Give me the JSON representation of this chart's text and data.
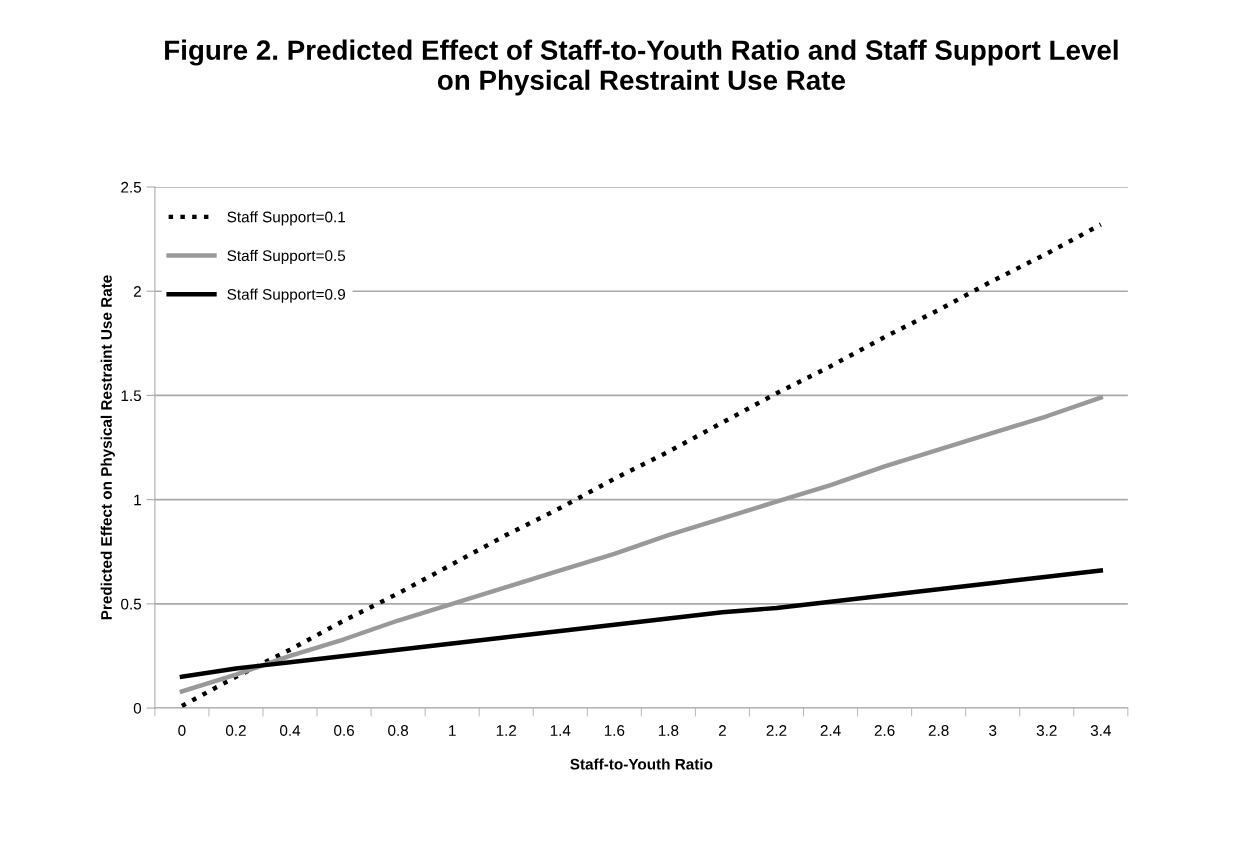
{
  "chart_data": {
    "type": "line",
    "title": "Figure 2. Predicted Effect of Staff-to-Youth Ratio and Staff Support Level\non Physical Restraint Use Rate",
    "xlabel": "Staff-to-Youth Ratio",
    "ylabel": "Predicted Effect on Physical Restraint Use Rate",
    "categories": [
      "0",
      "0.2",
      "0.4",
      "0.6",
      "0.8",
      "1",
      "1.2",
      "1.4",
      "1.6",
      "1.8",
      "2",
      "2.2",
      "2.4",
      "2.6",
      "2.8",
      "3",
      "3.2",
      "3.4"
    ],
    "series": [
      {
        "name": "Staff Support=0.1",
        "color": "#000000",
        "line_style": "dotted",
        "values": [
          0.01,
          0.15,
          0.28,
          0.42,
          0.55,
          0.69,
          0.83,
          0.96,
          1.1,
          1.23,
          1.37,
          1.51,
          1.64,
          1.78,
          1.91,
          2.05,
          2.18,
          2.32
        ]
      },
      {
        "name": "Staff Support=0.5",
        "color": "#999999",
        "line_style": "solid",
        "values": [
          0.08,
          0.16,
          0.25,
          0.33,
          0.42,
          0.5,
          0.58,
          0.66,
          0.74,
          0.83,
          0.91,
          0.99,
          1.07,
          1.16,
          1.24,
          1.32,
          1.4,
          1.49
        ]
      },
      {
        "name": "Staff Support=0.9",
        "color": "#000000",
        "line_style": "solid",
        "values": [
          0.15,
          0.19,
          0.22,
          0.25,
          0.28,
          0.31,
          0.34,
          0.37,
          0.4,
          0.43,
          0.46,
          0.48,
          0.51,
          0.54,
          0.57,
          0.6,
          0.63,
          0.66
        ]
      }
    ],
    "ylim": [
      0,
      2.5
    ],
    "yticks": [
      0,
      0.5,
      1,
      1.5,
      2,
      2.5
    ],
    "grid": "y",
    "legend": "top left"
  }
}
